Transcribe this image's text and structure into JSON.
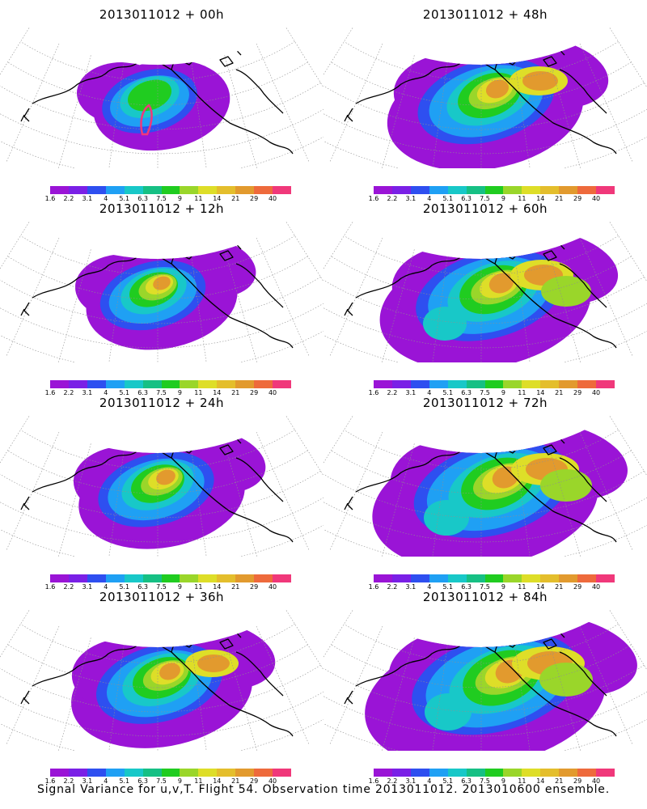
{
  "colorbar": {
    "ticks": [
      "1.6",
      "2.2",
      "3.1",
      "4",
      "5.1",
      "6.3",
      "7.5",
      "9",
      "11",
      "14",
      "21",
      "29",
      "40"
    ],
    "colors": [
      "#9a14d6",
      "#7a20e6",
      "#2e4ff0",
      "#1fa0f4",
      "#18c8c8",
      "#16c084",
      "#20cc20",
      "#9ad62a",
      "#dede28",
      "#e4be2c",
      "#e29a2e",
      "#ee6a3c",
      "#f0387a"
    ]
  },
  "panels": [
    {
      "title": "2013011012 + 00h",
      "stage": 0
    },
    {
      "title": "2013011012 + 48h",
      "stage": 4
    },
    {
      "title": "2013011012 + 12h",
      "stage": 1
    },
    {
      "title": "2013011012 + 60h",
      "stage": 5
    },
    {
      "title": "2013011012 + 24h",
      "stage": 2
    },
    {
      "title": "2013011012 + 72h",
      "stage": 6
    },
    {
      "title": "2013011012 + 36h",
      "stage": 3
    },
    {
      "title": "2013011012 + 84h",
      "stage": 7
    }
  ],
  "footer": "Signal Variance for u,v,T. Flight 54. Observation time 2013011012. 2013010600 ensemble."
}
